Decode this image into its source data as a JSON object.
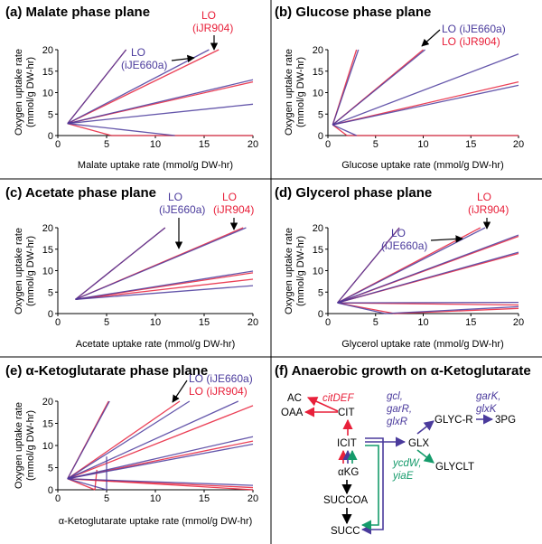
{
  "colors": {
    "iJR904": "#e8203a",
    "iJE660a": "#4a3a9c",
    "overlap": "#8a1f4a",
    "green": "#159b6b",
    "black": "#000000",
    "divider": "#000000"
  },
  "chart_data": [
    {
      "type": "line",
      "panel": "a",
      "title": "(a) Malate phase plane",
      "xlabel": "Malate uptake rate (mmol/g DW-hr)",
      "ylabel": [
        "Oxygen uptake rate",
        "(mmol/g DW-hr)"
      ],
      "xlim": [
        0,
        20
      ],
      "ylim": [
        0,
        20
      ],
      "xticks": [
        "0",
        "5",
        "10",
        "15",
        "20"
      ],
      "yticks": [
        "0",
        "5",
        "10",
        "15",
        "20"
      ],
      "annotations": [
        {
          "text": "LO",
          "model": "iJR904"
        },
        {
          "text": "(iJR904)",
          "model": "iJR904"
        },
        {
          "text": "LO",
          "model": "iJE660a"
        },
        {
          "text": "(iJE660a)",
          "model": "iJE660a"
        }
      ],
      "series": [
        {
          "name": "iJR904",
          "lines": [
            [
              [
                1,
                2.8
              ],
              [
                7,
                20
              ]
            ],
            [
              [
                1,
                2.8
              ],
              [
                16.5,
                20
              ]
            ],
            [
              [
                1,
                2.8
              ],
              [
                20,
                12.5
              ]
            ],
            [
              [
                1,
                2.8
              ],
              [
                5.5,
                0
              ]
            ],
            [
              [
                5.5,
                0
              ],
              [
                20,
                0
              ]
            ]
          ]
        },
        {
          "name": "iJE660a",
          "lines": [
            [
              [
                1,
                2.8
              ],
              [
                7,
                20
              ]
            ],
            [
              [
                1,
                2.8
              ],
              [
                15.5,
                20
              ]
            ],
            [
              [
                1,
                2.8
              ],
              [
                20,
                13
              ]
            ],
            [
              [
                1,
                2.8
              ],
              [
                20,
                7.3
              ]
            ],
            [
              [
                1,
                2.8
              ],
              [
                12,
                0
              ]
            ]
          ]
        }
      ]
    },
    {
      "type": "line",
      "panel": "b",
      "title": "(b) Glucose phase plane",
      "xlabel": "Glucose uptake rate (mmol/g DW-hr)",
      "ylabel": [
        "Oxygen uptake rate",
        "(mmol/g DW-hr)"
      ],
      "xlim": [
        0,
        20
      ],
      "ylim": [
        0,
        20
      ],
      "xticks": [
        "0",
        "5",
        "10",
        "15",
        "20"
      ],
      "yticks": [
        "0",
        "5",
        "10",
        "15",
        "20"
      ],
      "annotations": [
        {
          "text": "LO (iJE660a)",
          "model": "iJE660a"
        },
        {
          "text": "LO (iJR904)",
          "model": "iJR904"
        }
      ],
      "series": [
        {
          "name": "iJR904",
          "lines": [
            [
              [
                0.5,
                2.5
              ],
              [
                3,
                20
              ]
            ],
            [
              [
                0.5,
                2.5
              ],
              [
                10,
                20
              ]
            ],
            [
              [
                0.5,
                2.5
              ],
              [
                20,
                12.5
              ]
            ],
            [
              [
                0.5,
                2.5
              ],
              [
                2,
                0
              ]
            ],
            [
              [
                2,
                0
              ],
              [
                20,
                0
              ]
            ]
          ]
        },
        {
          "name": "iJE660a",
          "lines": [
            [
              [
                0.5,
                2.5
              ],
              [
                3.2,
                20
              ]
            ],
            [
              [
                0.5,
                2.5
              ],
              [
                10.2,
                20
              ]
            ],
            [
              [
                0.5,
                2.5
              ],
              [
                20,
                19
              ]
            ],
            [
              [
                0.5,
                2.5
              ],
              [
                20,
                11.7
              ]
            ],
            [
              [
                0.5,
                2.5
              ],
              [
                3,
                0
              ]
            ]
          ]
        }
      ]
    },
    {
      "type": "line",
      "panel": "c",
      "title": "(c) Acetate phase plane",
      "xlabel": "Acetate uptake rate (mmol/g DW-hr)",
      "ylabel": [
        "Oxygen uptake rate",
        "(mmol/g DW-hr)"
      ],
      "xlim": [
        0,
        20
      ],
      "ylim": [
        0,
        20
      ],
      "xticks": [
        "0",
        "5",
        "10",
        "15",
        "20"
      ],
      "yticks": [
        "0",
        "5",
        "10",
        "15",
        "20"
      ],
      "annotations": [
        {
          "text": "LO",
          "model": "iJE660a"
        },
        {
          "text": "(iJE660a)",
          "model": "iJE660a"
        },
        {
          "text": "LO",
          "model": "iJR904"
        },
        {
          "text": "(iJR904)",
          "model": "iJR904"
        }
      ],
      "series": [
        {
          "name": "iJR904",
          "lines": [
            [
              [
                1.8,
                3.3
              ],
              [
                11,
                20
              ]
            ],
            [
              [
                1.8,
                3.3
              ],
              [
                19,
                20
              ]
            ],
            [
              [
                1.8,
                3.3
              ],
              [
                20,
                9.5
              ]
            ],
            [
              [
                1.8,
                3.3
              ],
              [
                20,
                8
              ]
            ]
          ]
        },
        {
          "name": "iJE660a",
          "lines": [
            [
              [
                1.8,
                3.3
              ],
              [
                11,
                20
              ]
            ],
            [
              [
                1.8,
                3.3
              ],
              [
                19.3,
                20
              ]
            ],
            [
              [
                1.8,
                3.3
              ],
              [
                20,
                9.9
              ]
            ],
            [
              [
                1.8,
                3.3
              ],
              [
                20,
                6.5
              ]
            ]
          ]
        }
      ]
    },
    {
      "type": "line",
      "panel": "d",
      "title": "(d) Glycerol phase plane",
      "xlabel": "Glycerol uptake rate (mmol/g DW-hr)",
      "ylabel": [
        "Oxygen uptake rate",
        "(mmol/g DW-hr)"
      ],
      "xlim": [
        0,
        20
      ],
      "ylim": [
        0,
        20
      ],
      "xticks": [
        "0",
        "5",
        "10",
        "15",
        "20"
      ],
      "yticks": [
        "0",
        "5",
        "10",
        "15",
        "20"
      ],
      "annotations": [
        {
          "text": "LO",
          "model": "iJR904"
        },
        {
          "text": "(iJR904)",
          "model": "iJR904"
        },
        {
          "text": "LO",
          "model": "iJE660a"
        },
        {
          "text": "(iJE660a)",
          "model": "iJE660a"
        }
      ],
      "series": [
        {
          "name": "iJR904",
          "lines": [
            [
              [
                1,
                2.5
              ],
              [
                7.5,
                20
              ]
            ],
            [
              [
                1,
                2.5
              ],
              [
                16,
                20
              ]
            ],
            [
              [
                1,
                2.5
              ],
              [
                20,
                18
              ]
            ],
            [
              [
                1,
                2.5
              ],
              [
                20,
                14
              ]
            ],
            [
              [
                1,
                2.5
              ],
              [
                20,
                2
              ]
            ],
            [
              [
                1,
                2.5
              ],
              [
                7,
                0
              ]
            ],
            [
              [
                7,
                0
              ],
              [
                20,
                1.2
              ]
            ]
          ]
        },
        {
          "name": "iJE660a",
          "lines": [
            [
              [
                1,
                2.5
              ],
              [
                7.5,
                20
              ]
            ],
            [
              [
                1,
                2.5
              ],
              [
                16.5,
                20
              ]
            ],
            [
              [
                1,
                2.5
              ],
              [
                20,
                18.3
              ]
            ],
            [
              [
                1,
                2.5
              ],
              [
                20,
                14.3
              ]
            ],
            [
              [
                1,
                2.5
              ],
              [
                20,
                2.6
              ]
            ],
            [
              [
                1,
                2.5
              ],
              [
                6,
                0
              ]
            ],
            [
              [
                6,
                0
              ],
              [
                20,
                1.6
              ]
            ]
          ]
        }
      ]
    },
    {
      "type": "line",
      "panel": "e",
      "title": "(e) α-Ketoglutarate phase plane",
      "xlabel": "α-Ketoglutarate uptake rate (mmol/g DW-hr)",
      "ylabel": [
        "Oxygen uptake rate",
        "(mmol/g DW-hr)"
      ],
      "xlim": [
        0,
        20
      ],
      "ylim": [
        0,
        20
      ],
      "xticks": [
        "0",
        "5",
        "10",
        "15",
        "20"
      ],
      "yticks": [
        "0",
        "5",
        "10",
        "15",
        "20"
      ],
      "annotations": [
        {
          "text": "LO (iJE660a)",
          "model": "iJE660a"
        },
        {
          "text": "LO (iJR904)",
          "model": "iJR904"
        }
      ],
      "series": [
        {
          "name": "iJR904",
          "lines": [
            [
              [
                1,
                2.5
              ],
              [
                5.2,
                20
              ]
            ],
            [
              [
                1,
                2.5
              ],
              [
                12.5,
                20
              ]
            ],
            [
              [
                1,
                2.5
              ],
              [
                20,
                19
              ]
            ],
            [
              [
                1,
                2.5
              ],
              [
                20,
                11
              ]
            ],
            [
              [
                1,
                2.5
              ],
              [
                20,
                0.5
              ]
            ],
            [
              [
                1,
                2.5
              ],
              [
                3.8,
                0
              ]
            ],
            [
              [
                3.8,
                0
              ],
              [
                4,
                4.5
              ]
            ],
            [
              [
                1,
                2.5
              ],
              [
                20,
                0
              ]
            ]
          ]
        },
        {
          "name": "iJE660a",
          "lines": [
            [
              [
                1,
                2.5
              ],
              [
                5.3,
                20
              ]
            ],
            [
              [
                1,
                2.5
              ],
              [
                13.5,
                20
              ]
            ],
            [
              [
                1,
                2.5
              ],
              [
                18.5,
                20
              ]
            ],
            [
              [
                1,
                2.5
              ],
              [
                20,
                12
              ]
            ],
            [
              [
                1,
                2.5
              ],
              [
                20,
                10.3
              ]
            ],
            [
              [
                1,
                2.5
              ],
              [
                20,
                1
              ]
            ],
            [
              [
                1,
                2.5
              ],
              [
                5,
                0
              ]
            ],
            [
              [
                5,
                0
              ],
              [
                5,
                7.5
              ]
            ]
          ]
        }
      ]
    }
  ],
  "pathway": {
    "title": "(f) Anaerobic growth on α-Ketoglutarate",
    "genes": {
      "citDEF": "citDEF",
      "gcl": "gcl,",
      "garR": "garR,",
      "glxR": "glxR",
      "garK": "garK,",
      "glxK": "glxK",
      "ycdW": "ycdW,",
      "yiaE": "yiaE"
    },
    "nodes": {
      "AC": "AC",
      "OAA": "OAA",
      "CIT": "CIT",
      "ICIT": "ICIT",
      "GLX": "GLX",
      "GLYCR": "GLYC-R",
      "PG3": "3PG",
      "GLYCLT": "GLYCLT",
      "AKG": "αKG",
      "SUCCOA": "SUCCOA",
      "SUCC": "SUCC"
    }
  }
}
